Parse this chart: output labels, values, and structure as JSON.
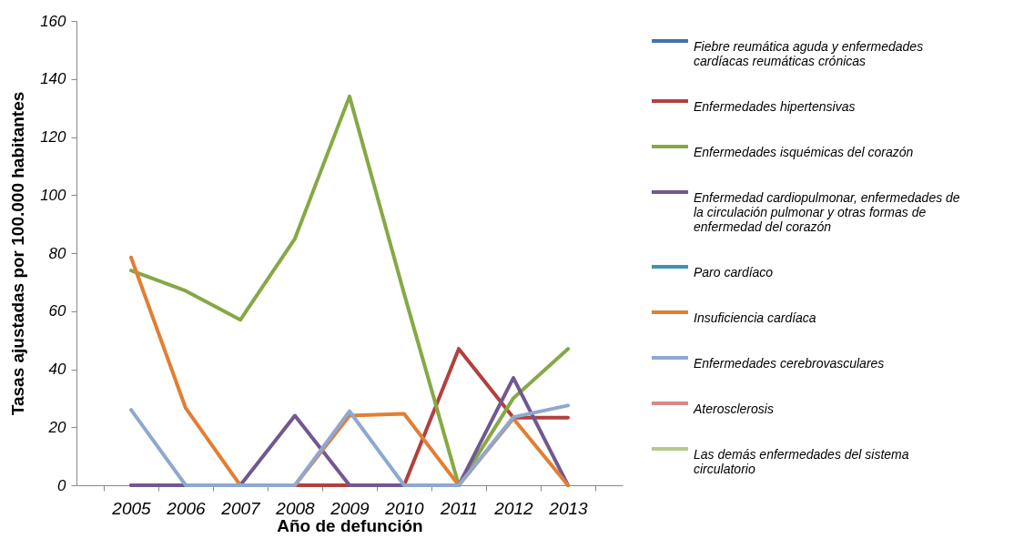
{
  "chart_data": {
    "type": "line",
    "xlabel": "Año de defunción",
    "ylabel": "Tasas ajustadas por 100.000 habitantes",
    "categories": [
      "2005",
      "2006",
      "2007",
      "2008",
      "2009",
      "2010",
      "2011",
      "2012",
      "2013"
    ],
    "ylim": [
      0,
      160
    ],
    "yticks": [
      0,
      20,
      40,
      60,
      80,
      100,
      120,
      140,
      160
    ],
    "legend": "right",
    "series": [
      {
        "name": "Fiebre reumática aguda y enfermedades cardíacas reumáticas crónicas",
        "color": "#4472b0",
        "values": [
          null,
          null,
          null,
          null,
          null,
          null,
          null,
          null,
          null
        ]
      },
      {
        "name": "Enfermedades hipertensivas",
        "color": "#b2403e",
        "values": [
          0,
          0,
          0,
          0,
          0,
          0,
          47,
          23.3,
          23.3
        ]
      },
      {
        "name": "Enfermedades isquémicas del corazón",
        "color": "#86a845",
        "values": [
          74,
          67,
          57,
          85,
          134,
          66,
          0,
          30,
          47
        ]
      },
      {
        "name": "Enfermedad cardiopulmonar, enfermedades de la circulación pulmonar y otras formas de enfermedad del corazón",
        "color": "#71588f",
        "values": [
          0,
          0,
          0,
          24,
          0,
          0,
          0,
          37,
          0
        ]
      },
      {
        "name": "Paro cardíaco",
        "color": "#3896b0",
        "values": [
          null,
          null,
          null,
          null,
          null,
          null,
          null,
          null,
          null
        ]
      },
      {
        "name": "Insuficiencia cardíaca",
        "color": "#e07f35",
        "values": [
          78.5,
          26.6,
          0,
          0,
          24,
          24.6,
          0,
          23,
          0
        ]
      },
      {
        "name": "Enfermedades cerebrovasculares",
        "color": "#8ea8d0",
        "values": [
          26,
          0,
          0,
          0,
          25.5,
          0,
          0,
          23.5,
          27.5
        ]
      },
      {
        "name": "Aterosclerosis",
        "color": "#d58a88",
        "values": [
          null,
          null,
          null,
          null,
          null,
          null,
          null,
          null,
          null
        ]
      },
      {
        "name": "Las demás enfermedades del sistema circulatorio",
        "color": "#b3cc8b",
        "values": [
          null,
          null,
          null,
          null,
          null,
          null,
          null,
          null,
          null
        ]
      }
    ]
  }
}
